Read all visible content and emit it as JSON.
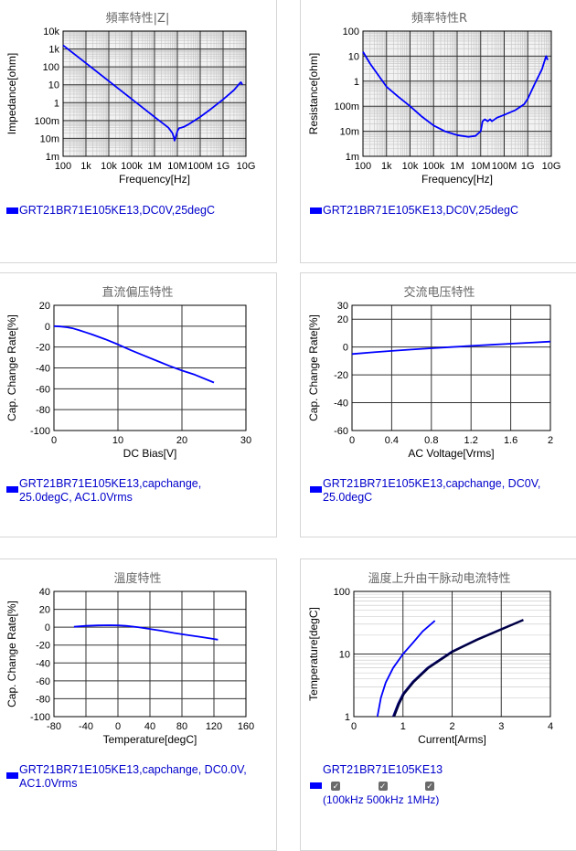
{
  "panels": [
    {
      "id": "impedance",
      "title": "頻率特性|Z|",
      "legend": "GRT21BR71E105KE13,DC0V,25degC",
      "chart_data": {
        "type": "line",
        "title": "頻率特性|Z|",
        "xlabel": "Frequency[Hz]",
        "ylabel": "Impedance[ohm]",
        "xscale": "log",
        "yscale": "log",
        "xlim": [
          100,
          10000000000
        ],
        "ylim": [
          0.001,
          10000
        ],
        "xticks": [
          "100",
          "1k",
          "10k",
          "100k",
          "1M",
          "10M",
          "100M",
          "1G",
          "10G"
        ],
        "yticks": [
          "10k",
          "1k",
          "100",
          "10",
          "1",
          "100m",
          "10m",
          "1m"
        ],
        "grid": true,
        "series": [
          {
            "name": "GRT21BR71E105KE13,DC0V,25degC",
            "color": "#0000ff",
            "points": [
              [
                100,
                1600
              ],
              [
                1000,
                160
              ],
              [
                10000,
                16
              ],
              [
                100000,
                1.6
              ],
              [
                1000000,
                0.16
              ],
              [
                4000000,
                0.04
              ],
              [
                6000000,
                0.02
              ],
              [
                7000000,
                0.012
              ],
              [
                7500000,
                0.0075
              ],
              [
                8500000,
                0.012
              ],
              [
                10000000,
                0.025
              ],
              [
                12000000,
                0.038
              ],
              [
                15000000,
                0.04
              ],
              [
                20000000,
                0.045
              ],
              [
                30000000,
                0.06
              ],
              [
                100000000,
                0.16
              ],
              [
                300000000,
                0.45
              ],
              [
                1000000000,
                1.5
              ],
              [
                3000000000,
                5
              ],
              [
                5000000000,
                11
              ],
              [
                6000000000,
                14
              ],
              [
                7000000000,
                10
              ]
            ]
          }
        ]
      }
    },
    {
      "id": "resistance",
      "title": "頻率特性R",
      "legend": "GRT21BR71E105KE13,DC0V,25degC",
      "chart_data": {
        "type": "line",
        "title": "頻率特性R",
        "xlabel": "Frequency[Hz]",
        "ylabel": "Resistance[ohm]",
        "xscale": "log",
        "yscale": "log",
        "xlim": [
          100,
          10000000000
        ],
        "ylim": [
          0.001,
          100
        ],
        "xticks": [
          "100",
          "1k",
          "10k",
          "100k",
          "1M",
          "10M",
          "100M",
          "1G",
          "10G"
        ],
        "yticks": [
          "100",
          "10",
          "1",
          "100m",
          "10m",
          "1m"
        ],
        "grid": true,
        "series": [
          {
            "name": "GRT21BR71E105KE13,DC0V,25degC",
            "color": "#0000ff",
            "points": [
              [
                100,
                15
              ],
              [
                200,
                5
              ],
              [
                500,
                1.5
              ],
              [
                1000,
                0.6
              ],
              [
                3000,
                0.25
              ],
              [
                10000,
                0.1
              ],
              [
                30000,
                0.04
              ],
              [
                100000,
                0.017
              ],
              [
                300000,
                0.01
              ],
              [
                1000000,
                0.007
              ],
              [
                3000000,
                0.006
              ],
              [
                6000000,
                0.0065
              ],
              [
                10000000,
                0.01
              ],
              [
                12000000,
                0.025
              ],
              [
                15000000,
                0.03
              ],
              [
                20000000,
                0.025
              ],
              [
                25000000,
                0.03
              ],
              [
                30000000,
                0.025
              ],
              [
                50000000,
                0.035
              ],
              [
                100000000,
                0.045
              ],
              [
                300000000,
                0.07
              ],
              [
                700000000,
                0.12
              ],
              [
                1000000000,
                0.2
              ],
              [
                2000000000,
                0.8
              ],
              [
                4000000000,
                3
              ],
              [
                6000000000,
                10
              ],
              [
                7000000000,
                7
              ]
            ]
          }
        ]
      }
    },
    {
      "id": "dcbias",
      "title": "直流偏压特性",
      "legend": "GRT21BR71E105KE13,capchange,\n25.0degC, AC1.0Vrms",
      "chart_data": {
        "type": "line",
        "title": "直流偏压特性",
        "xlabel": "DC Bias[V]",
        "ylabel": "Cap. Change Rate[%]",
        "xlim": [
          0,
          30
        ],
        "ylim": [
          -100,
          20
        ],
        "xticks": [
          0,
          10,
          20,
          30
        ],
        "yticks": [
          20,
          0,
          -20,
          -40,
          -60,
          -80,
          -100
        ],
        "grid": true,
        "series": [
          {
            "name": "GRT21BR71E105KE13,capchange,25.0degC, AC1.0Vrms",
            "color": "#0000ff",
            "x": [
              0,
              1,
              2,
              3,
              4,
              5,
              6,
              8,
              10,
              12,
              14,
              16,
              18,
              20,
              22,
              25
            ],
            "y": [
              0,
              -0.3,
              -1,
              -2.2,
              -4,
              -6,
              -8,
              -12.5,
              -17.5,
              -23,
              -28,
              -33,
              -38,
              -42.5,
              -46.5,
              -54
            ]
          }
        ]
      }
    },
    {
      "id": "acvoltage",
      "title": "交流电压特性",
      "legend": "GRT21BR71E105KE13,capchange, DC0V,\n25.0degC",
      "chart_data": {
        "type": "line",
        "title": "交流电压特性",
        "xlabel": "AC Voltage[Vrms]",
        "ylabel": "Cap. Change Rate[%]",
        "xlim": [
          0,
          2
        ],
        "ylim": [
          -60,
          30
        ],
        "xticks": [
          0,
          0.4,
          0.8,
          1.2,
          1.6,
          2
        ],
        "yticks": [
          30,
          20,
          0,
          -20,
          -40,
          -60
        ],
        "grid": true,
        "series": [
          {
            "name": "GRT21BR71E105KE13,capchange, DC0V, 25.0degC",
            "color": "#0000ff",
            "x": [
              0,
              0.2,
              0.4,
              0.6,
              0.8,
              1.0,
              1.2,
              1.4,
              1.6,
              1.8,
              2.0
            ],
            "y": [
              -5,
              -3.8,
              -2.8,
              -1.8,
              -0.9,
              0,
              0.8,
              1.6,
              2.4,
              3.1,
              3.9
            ]
          }
        ]
      }
    },
    {
      "id": "temperature",
      "title": "溫度特性",
      "legend": "GRT21BR71E105KE13,capchange, DC0.0V,\nAC1.0Vrms",
      "chart_data": {
        "type": "line",
        "title": "溫度特性",
        "xlabel": "Temperature[degC]",
        "ylabel": "Cap. Change Rate[%]",
        "xlim": [
          -80,
          160
        ],
        "ylim": [
          -100,
          40
        ],
        "xticks": [
          -80,
          -40,
          0,
          40,
          80,
          120,
          160
        ],
        "yticks": [
          40,
          20,
          0,
          -20,
          -40,
          -60,
          -80,
          -100
        ],
        "grid": true,
        "series": [
          {
            "name": "GRT21BR71E105KE13,capchange, DC0.0V, AC1.0Vrms",
            "color": "#0000ff",
            "x": [
              -55,
              -40,
              -25,
              -10,
              0,
              10,
              25,
              40,
              55,
              70,
              85,
              100,
              115,
              125
            ],
            "y": [
              0.5,
              1.5,
              2,
              2.2,
              2,
              1.5,
              0,
              -2,
              -4,
              -6.5,
              -8.5,
              -10.5,
              -12.5,
              -14
            ]
          }
        ]
      }
    },
    {
      "id": "heating",
      "title": "溫度上升由干脉动电流特性",
      "legend": "GRT21BR71E105KE13",
      "checkboxes": [
        "100kHz",
        "500kHz",
        "1MHz"
      ],
      "chart_data": {
        "type": "line",
        "title": "溫度上升由干脉动电流特性",
        "xlabel": "Current[Arms]",
        "ylabel": "Temperature[degC]",
        "yscale": "log",
        "xlim": [
          0,
          4
        ],
        "ylim": [
          1,
          100
        ],
        "xticks": [
          0,
          1,
          2,
          3,
          4
        ],
        "yticks": [
          100,
          10,
          1
        ],
        "grid": true,
        "series": [
          {
            "name": "100kHz",
            "color": "#0000ff",
            "x": [
              0.48,
              0.55,
              0.65,
              0.8,
              1.0,
              1.2,
              1.4,
              1.65
            ],
            "y": [
              1,
              2,
              3.5,
              6,
              10,
              15,
              23,
              34
            ]
          },
          {
            "name": "500kHz",
            "color": "#000080",
            "x": [
              0.8,
              0.9,
              1.0,
              1.2,
              1.5,
              2.0,
              2.5,
              3.0,
              3.45
            ],
            "y": [
              1,
              1.6,
              2.3,
              3.6,
              6,
              11,
              17,
              25,
              35
            ]
          },
          {
            "name": "1MHz",
            "color": "#000040",
            "x": [
              0.82,
              0.92,
              1.02,
              1.22,
              1.52,
              2.02,
              2.52,
              3.02,
              3.45
            ],
            "y": [
              1,
              1.6,
              2.3,
              3.6,
              6,
              11,
              17,
              25,
              35
            ]
          }
        ]
      }
    }
  ]
}
